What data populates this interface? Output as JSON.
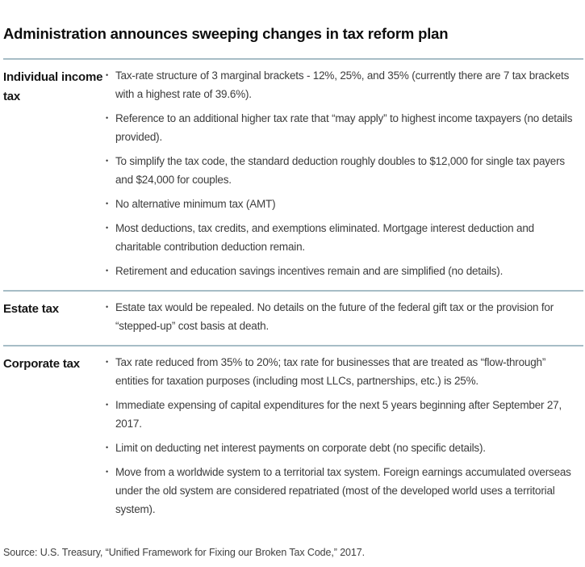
{
  "page": {
    "title": "Administration announces sweeping changes in tax reform plan",
    "source": "Source: U.S. Treasury, “Unified Framework for Fixing our Broken Tax Code,” 2017."
  },
  "colors": {
    "divider": "#a7bdc6",
    "title_text": "#0d0d0d",
    "body_text": "#3c3c3c"
  },
  "sections": [
    {
      "label": "Individual income tax",
      "bullets": [
        "Tax-rate structure of 3 marginal brackets - 12%, 25%, and 35% (currently there are 7 tax brackets with a highest rate of 39.6%).",
        "Reference to an additional higher tax rate that “may apply” to highest income taxpayers (no details provided).",
        "To simplify the tax code, the standard deduction roughly doubles to $12,000 for single tax payers and $24,000 for couples.",
        "No alternative minimum tax (AMT)",
        "Most deductions, tax credits, and exemptions eliminated. Mortgage interest deduction and charitable contribution deduction remain.",
        "Retirement and education savings incentives remain and are simplified (no details)."
      ]
    },
    {
      "label": "Estate tax",
      "bullets": [
        "Estate tax would be repealed. No details on the future of the federal gift tax or the provision for “stepped-up” cost basis at death."
      ]
    },
    {
      "label": "Corporate tax",
      "bullets": [
        "Tax rate reduced from 35% to 20%; tax rate for businesses that are treated as “flow-through” entities for taxation purposes (including most LLCs, partnerships, etc.) is 25%.",
        "Immediate expensing of capital expenditures for the next 5 years beginning after September 27, 2017.",
        "Limit on deducting net interest payments on corporate debt (no specific details).",
        "Move from a worldwide system to a territorial tax system. Foreign earnings accumulated overseas under the old system are considered repatriated (most of the developed world uses a territorial system)."
      ]
    }
  ]
}
